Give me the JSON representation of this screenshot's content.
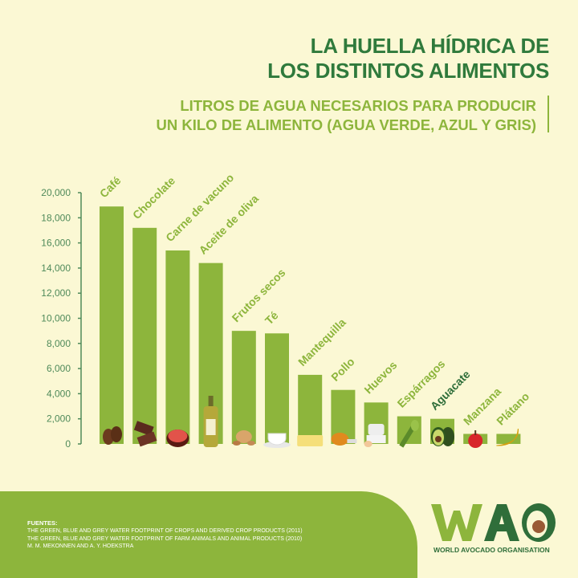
{
  "header": {
    "title_line1": "LA HUELLA HÍDRICA DE",
    "title_line2": "LOS DISTINTOS ALIMENTOS",
    "subtitle_line1": "LITROS DE AGUA NECESARIOS PARA PRODUCIR",
    "subtitle_line2": "UN KILO DE ALIMENTO (AGUA VERDE, AZUL Y GRIS)"
  },
  "chart_data": {
    "type": "bar",
    "title": "LA HUELLA HÍDRICA DE LOS DISTINTOS ALIMENTOS",
    "ylabel": "",
    "ylim": [
      0,
      20000
    ],
    "yticks": [
      "0",
      "2,000",
      "4,000",
      "6,000",
      "8,000",
      "10,000",
      "12,000",
      "14,000",
      "16,000",
      "18,000",
      "20,000"
    ],
    "grid": false,
    "categories": [
      "Café",
      "Chocolate",
      "Carne de vacuno",
      "Aceite de oliva",
      "Frutos secos",
      "Té",
      "Mantequilla",
      "Pollo",
      "Huevos",
      "Espárragos",
      "Aguacate",
      "Manzana",
      "Plátano"
    ],
    "values": [
      18900,
      17200,
      15400,
      14400,
      9000,
      8800,
      5500,
      4300,
      3300,
      2200,
      2000,
      800,
      800
    ],
    "icons": [
      "coffee-beans",
      "chocolate",
      "steak",
      "olive-oil-bottle",
      "nuts",
      "tea-cup",
      "butter",
      "chicken-leg",
      "eggs",
      "asparagus",
      "avocado",
      "apple",
      "banana"
    ],
    "colors": {
      "bar": "#8db53c",
      "label": "#8db53c",
      "highlight_label": "#2f6e3a",
      "axis": "#4f8a5a"
    }
  },
  "footer": {
    "sources_title": "FUENTES:",
    "sources": [
      "THE GREEN, BLUE AND GREY WATER FOOTPRINT OF CROPS AND DERIVED CROP PRODUCTS (2011)",
      "THE GREEN, BLUE AND GREY WATER FOOTPRINT OF FARM ANIMALS AND ANIMAL PRODUCTS  (2010)",
      "M. M. MEKONNEN AND A. Y. HOEKSTRA"
    ]
  },
  "logo": {
    "text": "WAO",
    "name": "WORLD AVOCADO ORGANISATION"
  }
}
